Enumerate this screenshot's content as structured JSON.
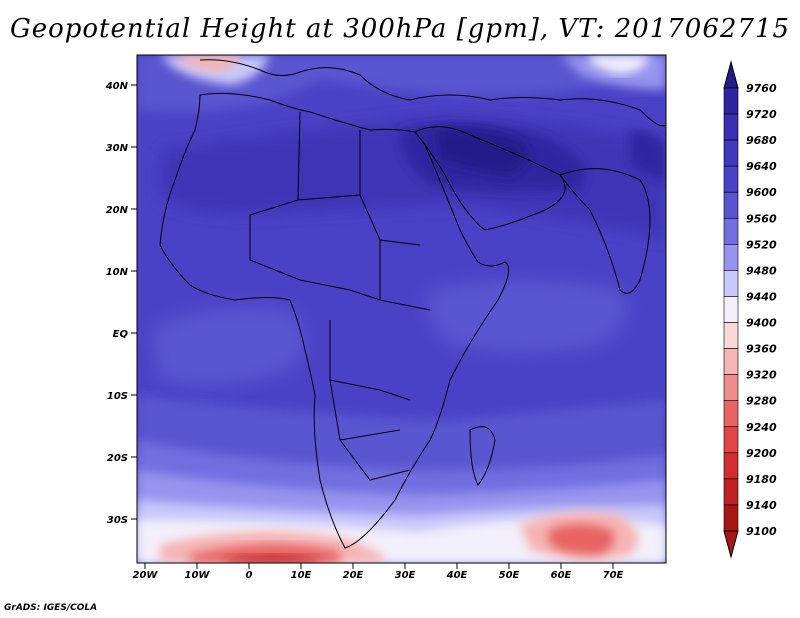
{
  "title": "Geopotential Height at 300hPa [gpm], VT: 2017062715",
  "credit": "GrADS: IGES/COLA",
  "map": {
    "lat_labels": [
      "40N",
      "30N",
      "20N",
      "10N",
      "EQ",
      "10S",
      "20S",
      "30S"
    ],
    "lon_labels": [
      "20W",
      "10W",
      "0",
      "10E",
      "20E",
      "30E",
      "40E",
      "50E",
      "60E",
      "70E"
    ]
  },
  "colorbar": {
    "levels": [
      9760,
      9720,
      9680,
      9640,
      9600,
      9560,
      9520,
      9480,
      9440,
      9400,
      9360,
      9320,
      9280,
      9240,
      9200,
      9180,
      9140,
      9100
    ],
    "colors": [
      "#241c8a",
      "#2e26a0",
      "#3830b0",
      "#4038bd",
      "#4a42c6",
      "#5a54d0",
      "#726ee0",
      "#9694ee",
      "#c8c8fa",
      "#f3f0fb",
      "#fad8d8",
      "#f6b4b4",
      "#ef8c8c",
      "#e86464",
      "#e04444",
      "#d12f2f",
      "#be2222",
      "#a81717"
    ]
  }
}
